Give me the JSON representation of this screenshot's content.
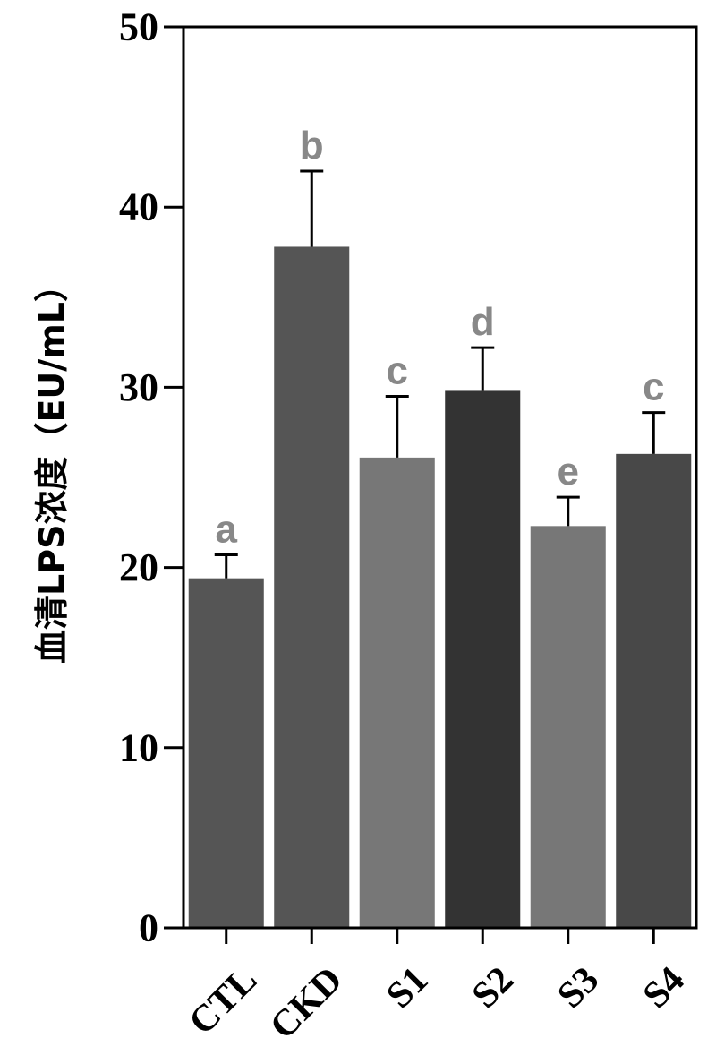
{
  "chart_data": {
    "type": "bar",
    "ylabel": "血清LPS浓度（EU/mL）",
    "ylim": [
      0,
      50
    ],
    "yticks": [
      0,
      10,
      20,
      30,
      40,
      50
    ],
    "categories": [
      "CTL",
      "CKD",
      "S1",
      "S2",
      "S3",
      "S4"
    ],
    "values": [
      19.4,
      37.8,
      26.1,
      29.8,
      22.3,
      26.3
    ],
    "errors": [
      1.3,
      4.2,
      3.4,
      2.4,
      1.6,
      2.3
    ],
    "significance": [
      "a",
      "b",
      "c",
      "d",
      "e",
      "c"
    ],
    "bar_colors": [
      "#555555",
      "#555555",
      "#777777",
      "#333333",
      "#777777",
      "#484848"
    ],
    "significance_color": "#888888",
    "grid": false
  }
}
